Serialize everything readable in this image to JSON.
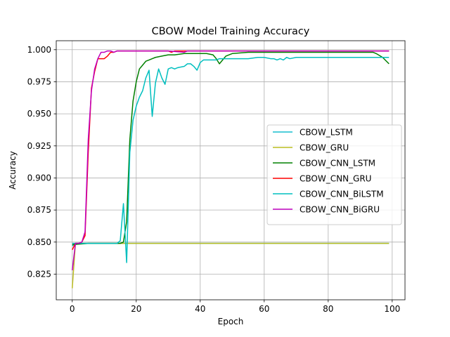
{
  "chart_data": {
    "type": "line",
    "title": "CBOW Model Training Accuracy",
    "xlabel": "Epoch",
    "ylabel": "Accuracy",
    "xlim": [
      -5,
      104
    ],
    "ylim": [
      0.805,
      1.007
    ],
    "xticks": [
      0,
      20,
      40,
      60,
      80,
      100
    ],
    "yticks": [
      0.825,
      0.85,
      0.875,
      0.9,
      0.925,
      0.95,
      0.975,
      1.0
    ],
    "ytick_labels": [
      "0.825",
      "0.850",
      "0.875",
      "0.900",
      "0.925",
      "0.950",
      "0.975",
      "1.000"
    ],
    "grid": true,
    "legend_position": "center-right",
    "series": [
      {
        "name": "CBOW_LSTM",
        "color": "#17becf",
        "points": [
          [
            0,
            0.847
          ],
          [
            1,
            0.849
          ],
          [
            2,
            0.849
          ],
          [
            99,
            0.849
          ]
        ]
      },
      {
        "name": "CBOW_GRU",
        "color": "#bcbd22",
        "points": [
          [
            0,
            0.814
          ],
          [
            1,
            0.849
          ],
          [
            2,
            0.849
          ],
          [
            99,
            0.849
          ]
        ]
      },
      {
        "name": "CBOW_CNN_LSTM",
        "color": "#008000",
        "points": [
          [
            0,
            0.848
          ],
          [
            5,
            0.849
          ],
          [
            10,
            0.849
          ],
          [
            15,
            0.849
          ],
          [
            16,
            0.85
          ],
          [
            17,
            0.866
          ],
          [
            18,
            0.93
          ],
          [
            19,
            0.96
          ],
          [
            20,
            0.975
          ],
          [
            21,
            0.985
          ],
          [
            22,
            0.988
          ],
          [
            23,
            0.991
          ],
          [
            24,
            0.992
          ],
          [
            25,
            0.993
          ],
          [
            26,
            0.994
          ],
          [
            28,
            0.995
          ],
          [
            30,
            0.996
          ],
          [
            32,
            0.996
          ],
          [
            35,
            0.997
          ],
          [
            38,
            0.997
          ],
          [
            40,
            0.997
          ],
          [
            42,
            0.997
          ],
          [
            44,
            0.996
          ],
          [
            45,
            0.993
          ],
          [
            46,
            0.989
          ],
          [
            47,
            0.992
          ],
          [
            48,
            0.995
          ],
          [
            50,
            0.997
          ],
          [
            55,
            0.998
          ],
          [
            60,
            0.998
          ],
          [
            65,
            0.998
          ],
          [
            70,
            0.998
          ],
          [
            75,
            0.998
          ],
          [
            80,
            0.998
          ],
          [
            85,
            0.998
          ],
          [
            90,
            0.998
          ],
          [
            94,
            0.998
          ],
          [
            95,
            0.997
          ],
          [
            97,
            0.994
          ],
          [
            99,
            0.989
          ]
        ]
      },
      {
        "name": "CBOW_CNN_GRU",
        "color": "#ff0000",
        "points": [
          [
            0,
            0.844
          ],
          [
            1,
            0.849
          ],
          [
            2,
            0.849
          ],
          [
            3,
            0.85
          ],
          [
            4,
            0.855
          ],
          [
            5,
            0.92
          ],
          [
            6,
            0.97
          ],
          [
            7,
            0.983
          ],
          [
            8,
            0.993
          ],
          [
            9,
            0.993
          ],
          [
            10,
            0.993
          ],
          [
            11,
            0.995
          ],
          [
            12,
            0.998
          ],
          [
            13,
            0.998
          ],
          [
            14,
            0.999
          ],
          [
            15,
            0.999
          ],
          [
            20,
            0.999
          ],
          [
            25,
            0.999
          ],
          [
            30,
            0.999
          ],
          [
            31,
            0.998
          ],
          [
            32,
            0.999
          ],
          [
            35,
            0.999
          ],
          [
            40,
            0.999
          ],
          [
            50,
            0.999
          ],
          [
            60,
            0.999
          ],
          [
            70,
            0.999
          ],
          [
            80,
            0.999
          ],
          [
            90,
            0.999
          ],
          [
            99,
            0.999
          ]
        ]
      },
      {
        "name": "CBOW_CNN_BiLSTM",
        "color": "#00bfbf",
        "points": [
          [
            0,
            0.849
          ],
          [
            5,
            0.849
          ],
          [
            10,
            0.849
          ],
          [
            14,
            0.849
          ],
          [
            15,
            0.851
          ],
          [
            16,
            0.88
          ],
          [
            17,
            0.834
          ],
          [
            18,
            0.92
          ],
          [
            19,
            0.945
          ],
          [
            20,
            0.956
          ],
          [
            21,
            0.963
          ],
          [
            22,
            0.968
          ],
          [
            23,
            0.978
          ],
          [
            24,
            0.984
          ],
          [
            25,
            0.948
          ],
          [
            26,
            0.974
          ],
          [
            27,
            0.985
          ],
          [
            28,
            0.978
          ],
          [
            29,
            0.973
          ],
          [
            30,
            0.985
          ],
          [
            31,
            0.986
          ],
          [
            32,
            0.985
          ],
          [
            33,
            0.986
          ],
          [
            35,
            0.987
          ],
          [
            36,
            0.989
          ],
          [
            37,
            0.989
          ],
          [
            38,
            0.987
          ],
          [
            39,
            0.984
          ],
          [
            40,
            0.99
          ],
          [
            41,
            0.992
          ],
          [
            43,
            0.992
          ],
          [
            45,
            0.992
          ],
          [
            46,
            0.993
          ],
          [
            50,
            0.993
          ],
          [
            55,
            0.993
          ],
          [
            58,
            0.994
          ],
          [
            60,
            0.994
          ],
          [
            62,
            0.993
          ],
          [
            63,
            0.993
          ],
          [
            64,
            0.992
          ],
          [
            65,
            0.993
          ],
          [
            66,
            0.992
          ],
          [
            67,
            0.994
          ],
          [
            68,
            0.993
          ],
          [
            70,
            0.994
          ],
          [
            75,
            0.994
          ],
          [
            80,
            0.994
          ],
          [
            85,
            0.994
          ],
          [
            90,
            0.994
          ],
          [
            95,
            0.994
          ],
          [
            99,
            0.994
          ]
        ]
      },
      {
        "name": "CBOW_CNN_BiGRU",
        "color": "#bf00bf",
        "points": [
          [
            0,
            0.828
          ],
          [
            1,
            0.849
          ],
          [
            2,
            0.849
          ],
          [
            3,
            0.85
          ],
          [
            4,
            0.858
          ],
          [
            5,
            0.93
          ],
          [
            6,
            0.968
          ],
          [
            7,
            0.985
          ],
          [
            8,
            0.993
          ],
          [
            9,
            0.998
          ],
          [
            10,
            0.998
          ],
          [
            11,
            0.999
          ],
          [
            12,
            0.999
          ],
          [
            13,
            0.998
          ],
          [
            14,
            0.999
          ],
          [
            16,
            0.999
          ],
          [
            20,
            0.999
          ],
          [
            25,
            0.999
          ],
          [
            30,
            0.999
          ],
          [
            35,
            0.998
          ],
          [
            36,
            0.999
          ],
          [
            40,
            0.999
          ],
          [
            50,
            0.999
          ],
          [
            60,
            0.999
          ],
          [
            70,
            0.999
          ],
          [
            80,
            0.999
          ],
          [
            90,
            0.999
          ],
          [
            99,
            0.999
          ]
        ]
      }
    ]
  }
}
